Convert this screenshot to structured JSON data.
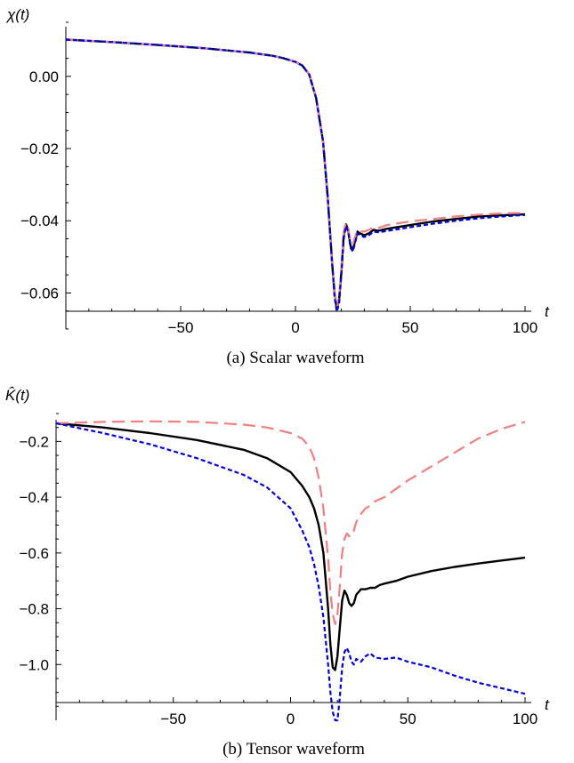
{
  "colors": {
    "black_series": "#000000",
    "pink_series": "#f08080",
    "blue_series": "#0000dd"
  },
  "chart_data": [
    {
      "type": "line",
      "caption": "(a)  Scalar waveform",
      "xlabel": "t",
      "ylabel": "χ(t)",
      "xlim": [
        -100,
        100
      ],
      "ylim": [
        -0.07,
        0.015
      ],
      "xticks": [
        -50,
        0,
        50,
        100
      ],
      "xtick_labels": [
        "−50",
        "0",
        "50",
        "100"
      ],
      "yticks": [
        0.0,
        -0.02,
        -0.04,
        -0.06
      ],
      "ytick_labels": [
        "0.00",
        "−0.02",
        "−0.04",
        "−0.06"
      ],
      "series": [
        {
          "color": "black_series",
          "dash": "solid",
          "x": [
            -100,
            -80,
            -60,
            -40,
            -20,
            -10,
            -5,
            0,
            3,
            6,
            9,
            12,
            14,
            16,
            17,
            18,
            19,
            20,
            21,
            22,
            23,
            24,
            25,
            26,
            27,
            28,
            30,
            32,
            34,
            36,
            40,
            50,
            60,
            70,
            80,
            90,
            100
          ],
          "y": [
            0.0102,
            0.0095,
            0.0087,
            0.0078,
            0.0066,
            0.0057,
            0.005,
            0.004,
            0.003,
            0.0005,
            -0.006,
            -0.018,
            -0.033,
            -0.052,
            -0.06,
            -0.0645,
            -0.062,
            -0.054,
            -0.044,
            -0.041,
            -0.0425,
            -0.047,
            -0.048,
            -0.0455,
            -0.043,
            -0.0435,
            -0.044,
            -0.0435,
            -0.0425,
            -0.0428,
            -0.0422,
            -0.0412,
            -0.0402,
            -0.0395,
            -0.0388,
            -0.0385,
            -0.0382
          ]
        },
        {
          "color": "pink_series",
          "dash": "long",
          "x": [
            -100,
            -80,
            -60,
            -40,
            -20,
            -10,
            -5,
            0,
            3,
            6,
            9,
            12,
            14,
            16,
            17,
            18,
            19,
            20,
            21,
            22,
            23,
            24,
            25,
            26,
            27,
            28,
            30,
            32,
            34,
            36,
            40,
            50,
            60,
            70,
            80,
            90,
            100
          ],
          "y": [
            0.0102,
            0.0095,
            0.0087,
            0.0078,
            0.0066,
            0.0057,
            0.005,
            0.004,
            0.003,
            0.0005,
            -0.006,
            -0.018,
            -0.033,
            -0.052,
            -0.06,
            -0.0645,
            -0.061,
            -0.053,
            -0.043,
            -0.0405,
            -0.042,
            -0.046,
            -0.0465,
            -0.0445,
            -0.0425,
            -0.043,
            -0.043,
            -0.0425,
            -0.0418,
            -0.042,
            -0.0412,
            -0.0402,
            -0.0395,
            -0.0388,
            -0.0383,
            -0.038,
            -0.0378
          ]
        },
        {
          "color": "blue_series",
          "dash": "short",
          "x": [
            -100,
            -80,
            -60,
            -40,
            -20,
            -10,
            -5,
            0,
            3,
            6,
            9,
            12,
            14,
            16,
            17,
            18,
            19,
            20,
            21,
            22,
            23,
            24,
            25,
            26,
            27,
            28,
            30,
            32,
            34,
            36,
            40,
            50,
            60,
            70,
            80,
            90,
            100
          ],
          "y": [
            0.0102,
            0.0095,
            0.0087,
            0.0078,
            0.0066,
            0.0057,
            0.005,
            0.004,
            0.003,
            0.0005,
            -0.006,
            -0.018,
            -0.033,
            -0.052,
            -0.061,
            -0.0652,
            -0.063,
            -0.055,
            -0.045,
            -0.0415,
            -0.043,
            -0.0475,
            -0.0485,
            -0.046,
            -0.0435,
            -0.044,
            -0.0445,
            -0.044,
            -0.043,
            -0.0432,
            -0.0428,
            -0.0418,
            -0.0408,
            -0.04,
            -0.0393,
            -0.0388,
            -0.0384
          ]
        }
      ]
    },
    {
      "type": "line",
      "caption": "(b)  Tensor waveform",
      "xlabel": "t",
      "ylabel": "K̂(t)",
      "xlim": [
        -100,
        100
      ],
      "ylim": [
        -1.2,
        -0.1
      ],
      "xticks": [
        -50,
        0,
        50,
        100
      ],
      "xtick_labels": [
        "−50",
        "0",
        "50",
        "100"
      ],
      "yticks": [
        -0.2,
        -0.4,
        -0.6,
        -0.8,
        -1.0
      ],
      "ytick_labels": [
        "−0.2",
        "−0.4",
        "−0.6",
        "−0.8",
        "−1.0"
      ],
      "series": [
        {
          "color": "black_series",
          "dash": "solid",
          "x": [
            -100,
            -80,
            -60,
            -40,
            -20,
            -10,
            0,
            5,
            8,
            10,
            12,
            14,
            16,
            17,
            18,
            19,
            20,
            21,
            22,
            23,
            24,
            25,
            26,
            27,
            28,
            30,
            32,
            34,
            36,
            38,
            40,
            45,
            50,
            60,
            70,
            80,
            90,
            100
          ],
          "y": [
            -0.135,
            -0.15,
            -0.17,
            -0.195,
            -0.23,
            -0.26,
            -0.31,
            -0.36,
            -0.4,
            -0.44,
            -0.5,
            -0.6,
            -0.8,
            -0.93,
            -1.01,
            -1.02,
            -0.97,
            -0.87,
            -0.77,
            -0.735,
            -0.75,
            -0.78,
            -0.79,
            -0.78,
            -0.75,
            -0.73,
            -0.73,
            -0.725,
            -0.725,
            -0.715,
            -0.71,
            -0.7,
            -0.685,
            -0.665,
            -0.65,
            -0.638,
            -0.627,
            -0.617
          ]
        },
        {
          "color": "pink_series",
          "dash": "long",
          "x": [
            -100,
            -80,
            -60,
            -40,
            -20,
            -10,
            0,
            5,
            8,
            10,
            12,
            14,
            16,
            17,
            18,
            19,
            20,
            21,
            22,
            23,
            24,
            25,
            26,
            27,
            28,
            30,
            32,
            34,
            36,
            40,
            45,
            50,
            60,
            70,
            80,
            90,
            100
          ],
          "y": [
            -0.135,
            -0.13,
            -0.128,
            -0.13,
            -0.14,
            -0.15,
            -0.17,
            -0.19,
            -0.22,
            -0.26,
            -0.33,
            -0.44,
            -0.62,
            -0.74,
            -0.82,
            -0.855,
            -0.82,
            -0.72,
            -0.6,
            -0.55,
            -0.53,
            -0.54,
            -0.54,
            -0.52,
            -0.49,
            -0.46,
            -0.44,
            -0.43,
            -0.415,
            -0.4,
            -0.37,
            -0.34,
            -0.29,
            -0.24,
            -0.19,
            -0.155,
            -0.13
          ]
        },
        {
          "color": "blue_series",
          "dash": "short",
          "x": [
            -100,
            -80,
            -60,
            -40,
            -20,
            -10,
            0,
            5,
            8,
            10,
            12,
            14,
            16,
            17,
            18,
            19,
            20,
            21,
            22,
            23,
            24,
            25,
            26,
            27,
            28,
            30,
            32,
            34,
            36,
            40,
            45,
            50,
            60,
            70,
            80,
            90,
            100
          ],
          "y": [
            -0.135,
            -0.17,
            -0.21,
            -0.26,
            -0.32,
            -0.365,
            -0.44,
            -0.52,
            -0.58,
            -0.64,
            -0.72,
            -0.83,
            -1.0,
            -1.1,
            -1.17,
            -1.2,
            -1.2,
            -1.12,
            -1.01,
            -0.955,
            -0.94,
            -0.96,
            -0.99,
            -1.0,
            -0.98,
            -0.99,
            -0.97,
            -0.96,
            -0.975,
            -0.98,
            -0.975,
            -0.99,
            -1.01,
            -1.04,
            -1.065,
            -1.085,
            -1.105
          ]
        }
      ]
    }
  ]
}
